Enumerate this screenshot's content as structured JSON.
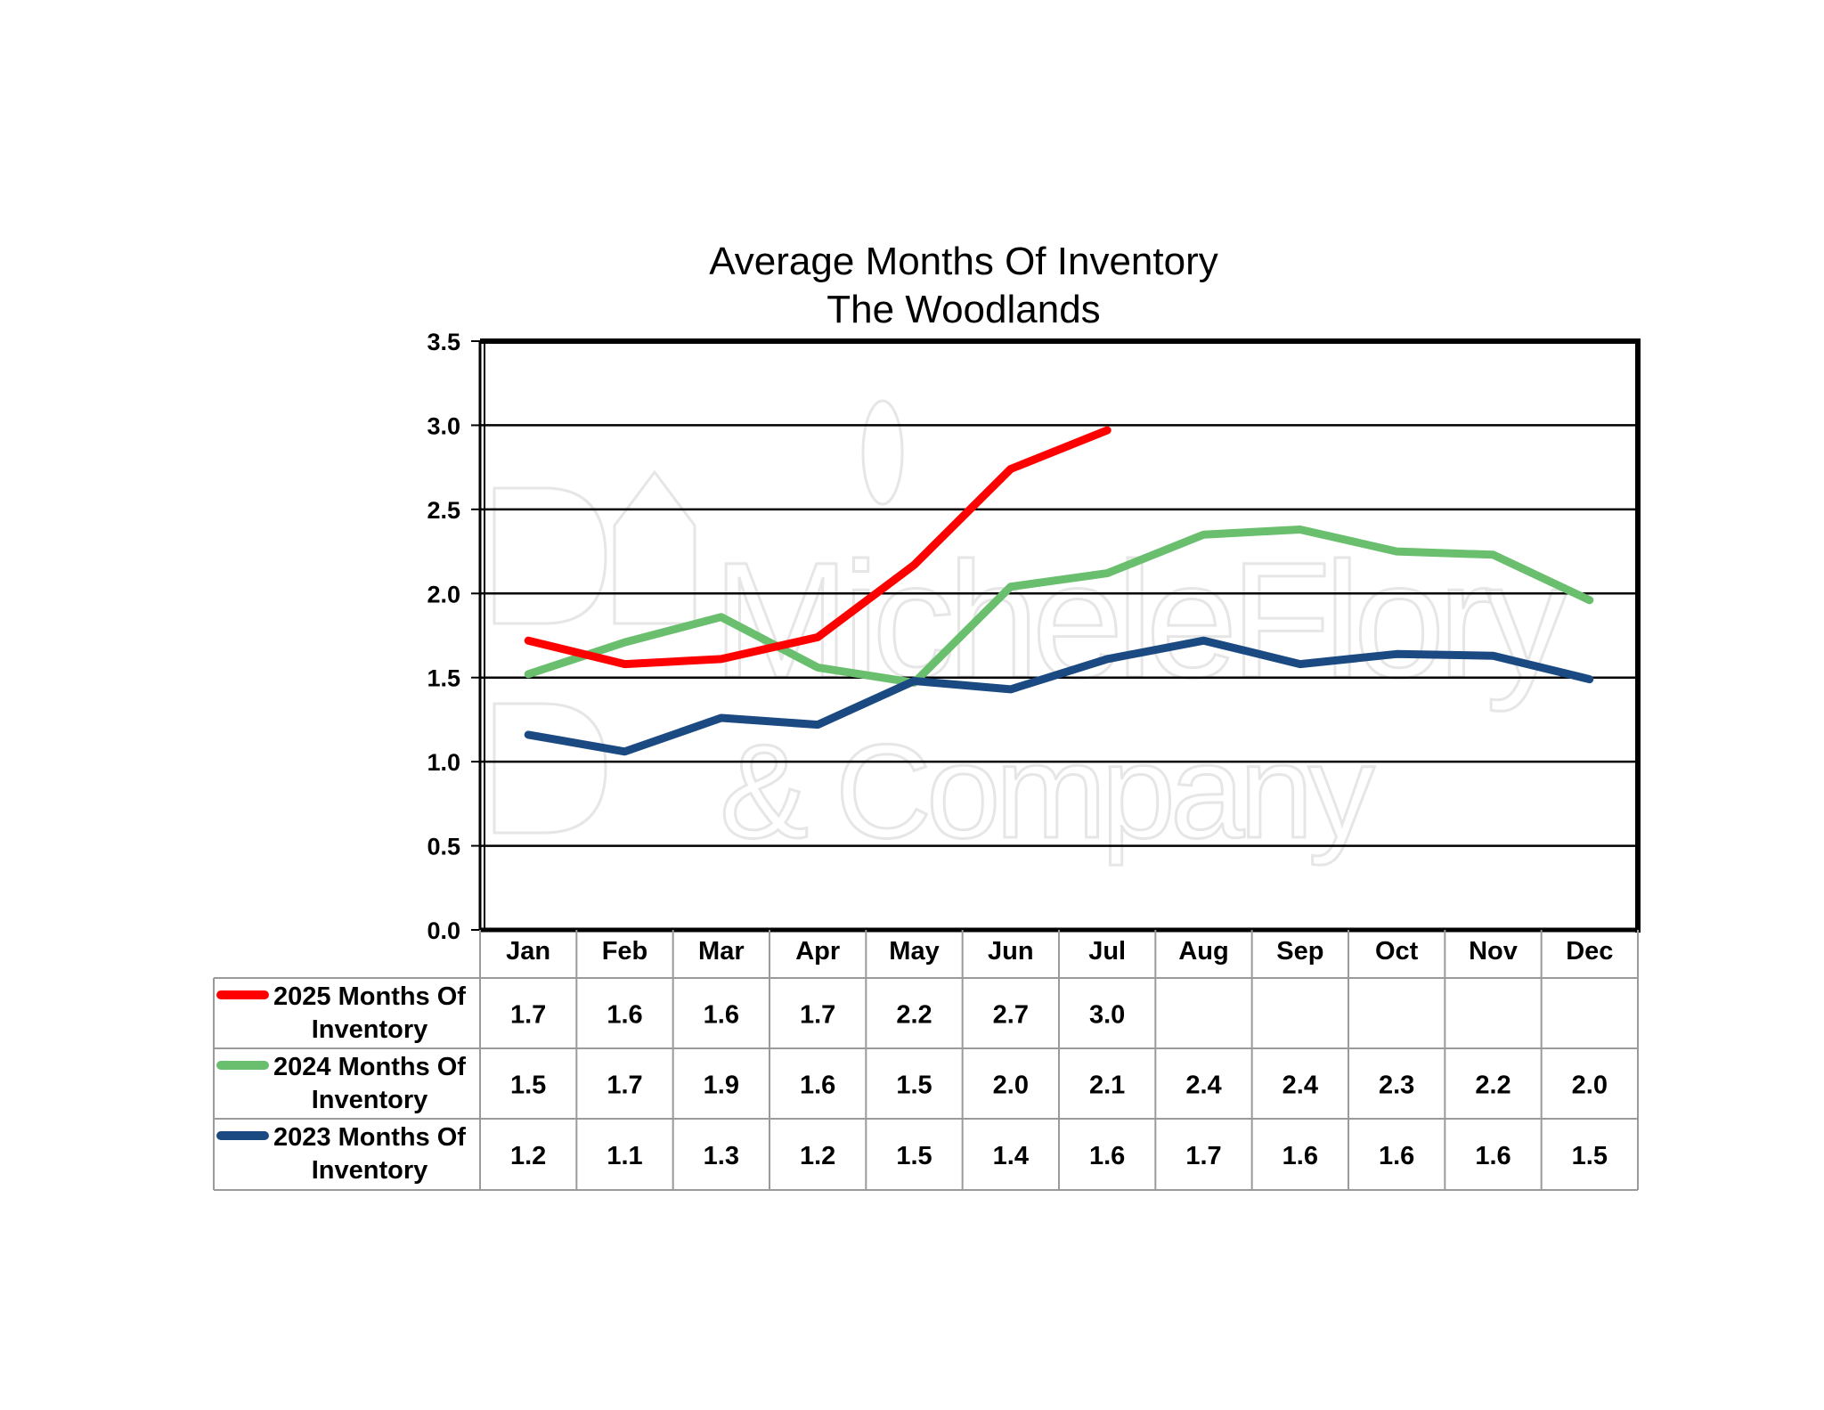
{
  "watermark": {
    "line1": "MicheleFlory",
    "line2": "& Company"
  },
  "chart_data": {
    "type": "line",
    "title": "Average Months Of Inventory",
    "subtitle": "The Woodlands",
    "categories": [
      "Jan",
      "Feb",
      "Mar",
      "Apr",
      "May",
      "Jun",
      "Jul",
      "Aug",
      "Sep",
      "Oct",
      "Nov",
      "Dec"
    ],
    "ylim": [
      0,
      3.5
    ],
    "yticks": [
      "0.0",
      "0.5",
      "1.0",
      "1.5",
      "2.0",
      "2.5",
      "3.0",
      "3.5"
    ],
    "grid": true,
    "legend_placement": "bottom data table",
    "series": [
      {
        "name_line1": "2025 Months Of",
        "name_line2": "Inventory",
        "color": "#ff0000",
        "values": [
          1.72,
          1.58,
          1.61,
          1.74,
          2.17,
          2.74,
          2.97,
          null,
          null,
          null,
          null,
          null
        ],
        "labels": [
          "1.7",
          "1.6",
          "1.6",
          "1.7",
          "2.2",
          "2.7",
          "3.0",
          "",
          "",
          "",
          "",
          ""
        ]
      },
      {
        "name_line1": "2024 Months Of",
        "name_line2": "Inventory",
        "color": "#6abf6e",
        "values": [
          1.52,
          1.71,
          1.86,
          1.56,
          1.47,
          2.04,
          2.12,
          2.35,
          2.38,
          2.25,
          2.23,
          1.96
        ],
        "labels": [
          "1.5",
          "1.7",
          "1.9",
          "1.6",
          "1.5",
          "2.0",
          "2.1",
          "2.4",
          "2.4",
          "2.3",
          "2.2",
          "2.0"
        ]
      },
      {
        "name_line1": "2023 Months Of",
        "name_line2": "Inventory",
        "color": "#1b4a82",
        "values": [
          1.16,
          1.06,
          1.26,
          1.22,
          1.48,
          1.43,
          1.61,
          1.72,
          1.58,
          1.64,
          1.63,
          1.49
        ],
        "labels": [
          "1.2",
          "1.1",
          "1.3",
          "1.2",
          "1.5",
          "1.4",
          "1.6",
          "1.7",
          "1.6",
          "1.6",
          "1.6",
          "1.5"
        ]
      }
    ]
  }
}
